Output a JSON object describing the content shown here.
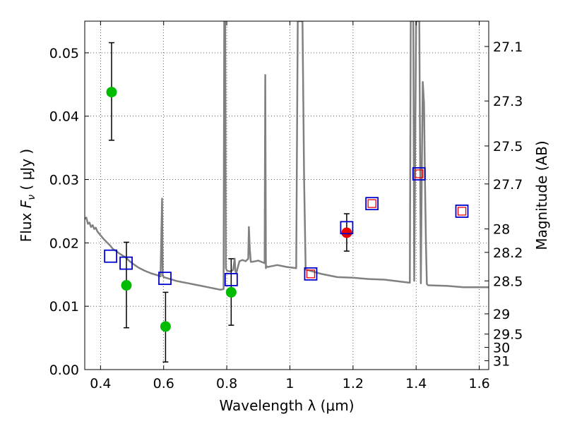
{
  "chart_data": {
    "type": "scatter",
    "xlabel": "Wavelength  λ (μm)",
    "ylabel": "Flux  F_ν  ( μJy )",
    "ylabel_parts": {
      "prefix": "Flux  ",
      "symbol": "F",
      "subscript": "ν",
      "suffix": "  ( μJy )"
    },
    "y2label": "Magnitude (AB)",
    "xlim": [
      0.35,
      1.63
    ],
    "ylim": [
      0.0,
      0.055
    ],
    "grid": true,
    "x_ticks": [
      0.4,
      0.6,
      0.8,
      1.0,
      1.2,
      1.4,
      1.6
    ],
    "x_tick_labels": [
      "0.4",
      "0.6",
      "0.8",
      "1",
      "1.2",
      "1.4",
      "1.6"
    ],
    "y_ticks": [
      0.0,
      0.01,
      0.02,
      0.03,
      0.04,
      0.05
    ],
    "y_tick_labels": [
      "0.00",
      "0.01",
      "0.02",
      "0.03",
      "0.04",
      "0.05"
    ],
    "mag_ticks": [
      "27.1",
      "27.3",
      "27.5",
      "27.7",
      "28",
      "28.2",
      "28.5",
      "29",
      "29.5",
      "30",
      "31"
    ],
    "mag_tick_fluxes": [
      0.051,
      0.0424,
      0.0353,
      0.0293,
      0.0222,
      0.0185,
      0.014,
      0.0088,
      0.0056,
      0.0035,
      0.0014
    ],
    "colors": {
      "detection": "#00bb00",
      "hst": "#ee0000",
      "model_box": "#0000cc",
      "model_inner": "#ee0000",
      "template": "#808080",
      "grid": "#000000"
    },
    "series": [
      {
        "name": "green detections with error bars",
        "marker": "circle",
        "color": "#00bb00",
        "points": [
          {
            "x": 0.435,
            "y": 0.0438,
            "err_low": 0.0362,
            "err_high": 0.0516
          },
          {
            "x": 0.482,
            "y": 0.0133,
            "err_low": 0.0066,
            "err_high": 0.0201
          },
          {
            "x": 0.606,
            "y": 0.0068,
            "err_low": 0.0012,
            "err_high": 0.0122
          },
          {
            "x": 0.814,
            "y": 0.0122,
            "err_low": 0.007,
            "err_high": 0.0175
          }
        ]
      },
      {
        "name": "red detection with error bar",
        "marker": "circle",
        "color": "#ee0000",
        "points": [
          {
            "x": 1.18,
            "y": 0.0216,
            "err_low": 0.0187,
            "err_high": 0.0246
          }
        ]
      },
      {
        "name": "model photometry (blue squares)",
        "marker": "square",
        "color": "#0000cc",
        "points": [
          {
            "x": 0.432,
            "y": 0.0179
          },
          {
            "x": 0.481,
            "y": 0.0168
          },
          {
            "x": 0.604,
            "y": 0.0144
          },
          {
            "x": 0.814,
            "y": 0.0142
          },
          {
            "x": 1.066,
            "y": 0.0151
          },
          {
            "x": 1.18,
            "y": 0.0224
          },
          {
            "x": 1.26,
            "y": 0.0262
          },
          {
            "x": 1.409,
            "y": 0.0309
          },
          {
            "x": 1.545,
            "y": 0.025
          }
        ]
      },
      {
        "name": "model photometry (red squares)",
        "marker": "square",
        "color": "#ee0000",
        "points": [
          {
            "x": 1.066,
            "y": 0.0151
          },
          {
            "x": 1.26,
            "y": 0.0262
          },
          {
            "x": 1.409,
            "y": 0.0309
          },
          {
            "x": 1.545,
            "y": 0.025
          }
        ]
      },
      {
        "name": "template spectrum",
        "type": "line",
        "color": "#808080",
        "x": [
          0.35,
          0.355,
          0.36,
          0.365,
          0.37,
          0.375,
          0.38,
          0.385,
          0.39,
          0.4,
          0.41,
          0.42,
          0.43,
          0.44,
          0.45,
          0.46,
          0.47,
          0.48,
          0.49,
          0.5,
          0.52,
          0.54,
          0.56,
          0.58,
          0.59,
          0.595,
          0.597,
          0.599,
          0.601,
          0.6,
          0.62,
          0.64,
          0.66,
          0.68,
          0.7,
          0.72,
          0.74,
          0.76,
          0.78,
          0.79,
          0.792,
          0.795,
          0.797,
          0.799,
          0.801,
          0.81,
          0.82,
          0.825,
          0.827,
          0.83,
          0.84,
          0.85,
          0.86,
          0.868,
          0.87,
          0.873,
          0.876,
          0.88,
          0.9,
          0.92,
          0.922,
          0.924,
          0.926,
          0.93,
          0.96,
          0.99,
          1.02,
          1.025,
          1.03,
          1.035,
          1.04,
          1.045,
          1.05,
          1.1,
          1.15,
          1.2,
          1.25,
          1.3,
          1.35,
          1.38,
          1.383,
          1.386,
          1.388,
          1.391,
          1.394,
          1.4,
          1.41,
          1.415,
          1.418,
          1.421,
          1.425,
          1.428,
          1.431,
          1.434,
          1.438,
          1.44,
          1.5,
          1.55,
          1.6,
          1.63
        ],
        "y": [
          0.0238,
          0.024,
          0.023,
          0.0232,
          0.0225,
          0.0228,
          0.0222,
          0.0224,
          0.0218,
          0.0212,
          0.0206,
          0.0201,
          0.0196,
          0.019,
          0.0187,
          0.0183,
          0.018,
          0.0177,
          0.0172,
          0.0168,
          0.0161,
          0.0156,
          0.0152,
          0.0149,
          0.0147,
          0.027,
          0.0148,
          0.0147,
          0.0146,
          0.0146,
          0.0143,
          0.014,
          0.0138,
          0.0136,
          0.0134,
          0.0132,
          0.013,
          0.0128,
          0.0126,
          0.0127,
          0.055,
          0.055,
          0.016,
          0.0158,
          0.0156,
          0.0155,
          0.0157,
          0.0175,
          0.0156,
          0.0152,
          0.0171,
          0.0173,
          0.0171,
          0.0175,
          0.0225,
          0.019,
          0.017,
          0.017,
          0.0172,
          0.0168,
          0.0465,
          0.016,
          0.0163,
          0.0162,
          0.0165,
          0.0162,
          0.016,
          0.055,
          0.055,
          0.055,
          0.055,
          0.03,
          0.0158,
          0.0151,
          0.0146,
          0.0145,
          0.0143,
          0.0142,
          0.0139,
          0.0137,
          0.055,
          0.055,
          0.055,
          0.055,
          0.014,
          0.055,
          0.055,
          0.0136,
          0.032,
          0.0454,
          0.042,
          0.03,
          0.02,
          0.0135,
          0.0133,
          0.0133,
          0.0132,
          0.013,
          0.013,
          0.013
        ]
      }
    ]
  }
}
